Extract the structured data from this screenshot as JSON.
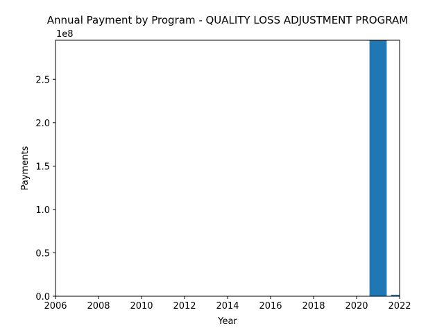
{
  "chart_data": {
    "type": "bar",
    "title": "Annual Payment by Program - QUALITY LOSS ADJUSTMENT PROGRAM",
    "xlabel": "Year",
    "ylabel": "Payments",
    "y_offset_label": "1e8",
    "x": [
      2021,
      2022
    ],
    "values": [
      295000000,
      1700000
    ],
    "bar_color": "#1f77b4",
    "xlim": [
      2006,
      2022
    ],
    "ylim": [
      0,
      295000000
    ],
    "x_ticks": [
      2006,
      2008,
      2010,
      2012,
      2014,
      2016,
      2018,
      2020,
      2022
    ],
    "x_tick_labels": [
      "2006",
      "2008",
      "2010",
      "2012",
      "2014",
      "2016",
      "2018",
      "2020",
      "2022"
    ],
    "y_ticks": [
      0,
      50000000,
      100000000,
      150000000,
      200000000,
      250000000
    ],
    "y_tick_labels": [
      "0.0",
      "0.5",
      "1.0",
      "1.5",
      "2.0",
      "2.5"
    ],
    "grid": false,
    "legend": "none"
  }
}
